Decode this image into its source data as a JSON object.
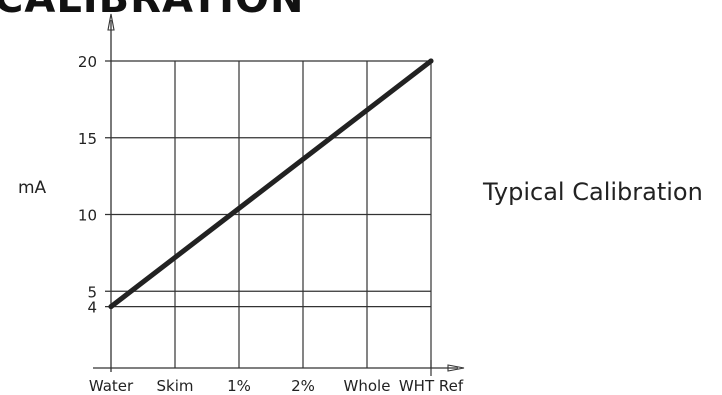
{
  "chart_data": {
    "type": "line",
    "title": "CALIBRATION",
    "xlabel": "",
    "ylabel": "mA",
    "annotation": "Typical Calibration",
    "categories": [
      "Water",
      "Skim",
      "1%",
      "2%",
      "Whole",
      "WHT Ref"
    ],
    "y_ticks": [
      4,
      5,
      10,
      15,
      20
    ],
    "ylim": [
      0,
      20
    ],
    "grid": true,
    "legend": "none",
    "series": [
      {
        "x": [
          "Water",
          "WHT Ref"
        ],
        "values": [
          4,
          20
        ]
      }
    ],
    "colors": {
      "line": "#222222",
      "grid": "#333333",
      "axis": "#333333"
    }
  }
}
